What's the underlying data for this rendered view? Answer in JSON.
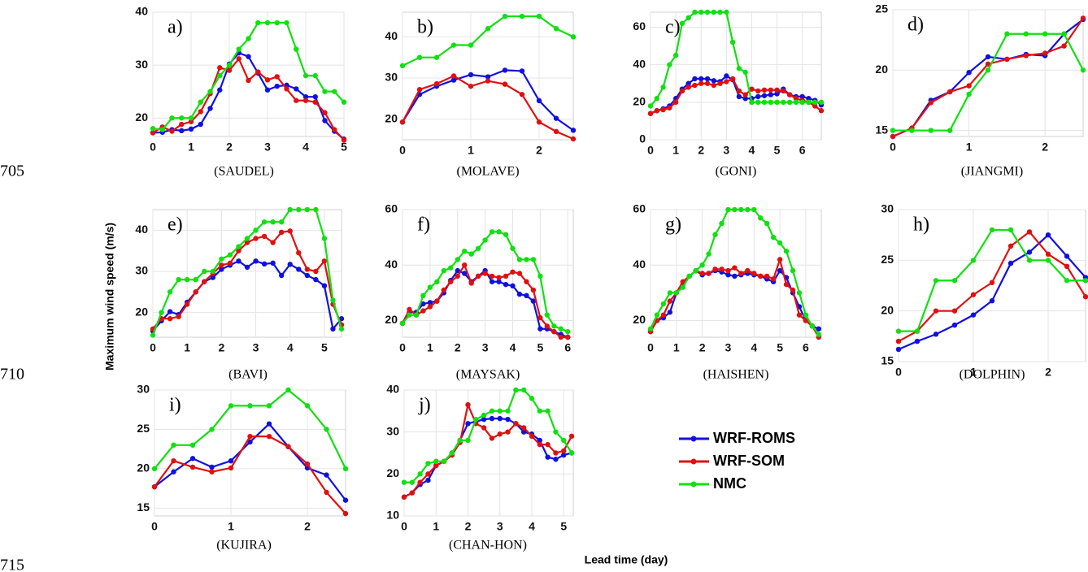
{
  "line_numbers": [
    "705",
    "710",
    "715"
  ],
  "y_label": "Maximum wind speed (m/s)",
  "x_label": "Lead time (day)",
  "chart_data": [
    {
      "type": "line",
      "title": "a)",
      "caption": "(SAUDEL)",
      "xlim": [
        0,
        5
      ],
      "ylim": [
        16.5,
        40
      ],
      "xticks": [
        0,
        1,
        2,
        3,
        4,
        5
      ],
      "yticks": [
        20,
        30,
        40
      ],
      "grid": true,
      "x": [
        0,
        0.25,
        0.5,
        0.75,
        1,
        1.25,
        1.5,
        1.75,
        2,
        2.25,
        2.5,
        2.75,
        3,
        3.25,
        3.5,
        3.75,
        4,
        4.25,
        4.5,
        4.75,
        5
      ],
      "series": [
        {
          "name": "WRF-ROMS",
          "color": "#1010e0",
          "values": [
            17.2,
            17.3,
            17.8,
            17.6,
            17.9,
            18.8,
            21.8,
            25.3,
            30.2,
            32.3,
            31.6,
            28.5,
            25.3,
            26,
            26.2,
            25.5,
            24,
            24,
            19.5,
            17.5,
            16
          ]
        },
        {
          "name": "WRF-SOM",
          "color": "#e01010",
          "values": [
            17.2,
            18.3,
            17.5,
            18.8,
            19.3,
            21.2,
            24.6,
            29.5,
            29,
            31.2,
            27.1,
            28.7,
            27.2,
            27.8,
            25.5,
            23.3,
            23.3,
            23,
            21,
            17.8,
            15.8
          ]
        },
        {
          "name": "NMC",
          "color": "#10e010",
          "values": [
            18,
            17.8,
            20,
            20,
            20,
            23,
            25,
            28,
            30,
            33,
            35,
            38,
            38,
            38,
            38,
            33,
            28,
            28,
            25,
            25,
            23
          ]
        }
      ]
    },
    {
      "type": "line",
      "title": "b)",
      "caption": "(MOLAVE)",
      "xlim": [
        0,
        2.5
      ],
      "ylim": [
        15,
        46
      ],
      "xticks": [
        0,
        1,
        2
      ],
      "yticks": [
        20,
        30,
        40
      ],
      "grid": true,
      "x": [
        0,
        0.25,
        0.5,
        0.75,
        1,
        1.25,
        1.5,
        1.75,
        2,
        2.25,
        2.5
      ],
      "series": [
        {
          "name": "WRF-ROMS",
          "color": "#1010e0",
          "values": [
            19.3,
            26,
            28,
            29.5,
            30.8,
            30.3,
            31.9,
            31.7,
            24.5,
            20.2,
            17.3
          ]
        },
        {
          "name": "WRF-SOM",
          "color": "#e01010",
          "values": [
            19.3,
            27.2,
            28.6,
            30.5,
            28,
            29.3,
            28.5,
            26,
            19.3,
            17,
            15.2
          ]
        },
        {
          "name": "NMC",
          "color": "#10e010",
          "values": [
            33,
            35,
            35,
            38,
            38,
            42,
            45,
            45,
            45,
            42,
            40
          ]
        }
      ]
    },
    {
      "type": "line",
      "title": "c)",
      "caption": "(GONI)",
      "xlim": [
        0,
        6.75
      ],
      "ylim": [
        0,
        68
      ],
      "xticks": [
        0,
        1,
        2,
        3,
        4,
        5,
        6
      ],
      "yticks": [
        0,
        20,
        40,
        60
      ],
      "grid": true,
      "x": [
        0,
        0.25,
        0.5,
        0.75,
        1,
        1.25,
        1.5,
        1.75,
        2,
        2.25,
        2.5,
        2.75,
        3,
        3.25,
        3.5,
        3.75,
        4,
        4.25,
        4.5,
        4.75,
        5,
        5.25,
        5.5,
        5.75,
        6,
        6.25,
        6.5,
        6.75
      ],
      "series": [
        {
          "name": "WRF-ROMS",
          "color": "#1010e0",
          "values": [
            14,
            15.5,
            16.5,
            18,
            22,
            27,
            30,
            32.5,
            32.5,
            32.5,
            31.5,
            31,
            34,
            32,
            23,
            22,
            22,
            23,
            23.5,
            24,
            24.5,
            27,
            24,
            23,
            23,
            22,
            21,
            18.5
          ]
        },
        {
          "name": "WRF-SOM",
          "color": "#e01010",
          "values": [
            14,
            15.5,
            16,
            17,
            20,
            26,
            28,
            29,
            30,
            30,
            29,
            30,
            31,
            32.5,
            26,
            24,
            27,
            26,
            26.5,
            26.5,
            26.5,
            26,
            24,
            22,
            21,
            20,
            18,
            15.5
          ]
        },
        {
          "name": "NMC",
          "color": "#10e010",
          "values": [
            18,
            22,
            28,
            40,
            45,
            62,
            65,
            68,
            68,
            68,
            68,
            68,
            68,
            52,
            38,
            36,
            20,
            20,
            20,
            20,
            20,
            20,
            20,
            20,
            20,
            20,
            20,
            20
          ]
        }
      ]
    },
    {
      "type": "line",
      "title": "d)",
      "caption": "(JIANGMI)",
      "xlim": [
        0,
        2.5
      ],
      "ylim": [
        14.5,
        25
      ],
      "xticks": [
        0,
        1,
        2
      ],
      "yticks": [
        15,
        20,
        25
      ],
      "grid": true,
      "x": [
        0,
        0.25,
        0.5,
        0.75,
        1,
        1.25,
        1.5,
        1.75,
        2,
        2.25,
        2.5
      ],
      "series": [
        {
          "name": "WRF-ROMS",
          "color": "#1010e0",
          "values": [
            14.5,
            15.2,
            17.5,
            18.2,
            19.8,
            21.1,
            20.9,
            21.3,
            21.2,
            23,
            24.2
          ]
        },
        {
          "name": "WRF-SOM",
          "color": "#e01010",
          "values": [
            14.5,
            15.2,
            17.3,
            18.2,
            18.7,
            20.5,
            20.9,
            21.2,
            21.4,
            22,
            24.3
          ]
        },
        {
          "name": "NMC",
          "color": "#10e010",
          "values": [
            15,
            15,
            15,
            15,
            18,
            20,
            23,
            23,
            23,
            23,
            20
          ]
        }
      ]
    },
    {
      "type": "line",
      "title": "e)",
      "caption": "(BAVI)",
      "xlim": [
        0,
        5.5
      ],
      "ylim": [
        14,
        45
      ],
      "xticks": [
        0,
        1,
        2,
        3,
        4,
        5
      ],
      "yticks": [
        20,
        30,
        40
      ],
      "grid": true,
      "x": [
        0,
        0.25,
        0.5,
        0.75,
        1,
        1.25,
        1.5,
        1.75,
        2,
        2.25,
        2.5,
        2.75,
        3,
        3.25,
        3.5,
        3.75,
        4,
        4.25,
        4.5,
        4.75,
        5,
        5.25,
        5.5
      ],
      "series": [
        {
          "name": "WRF-ROMS",
          "color": "#1010e0",
          "values": [
            15.5,
            18,
            20.2,
            19.5,
            22.5,
            25,
            27.5,
            28.5,
            30.5,
            31.5,
            32.5,
            31,
            32.5,
            31.8,
            32,
            29,
            31.7,
            30.5,
            29,
            28,
            26.5,
            16,
            18.5
          ]
        },
        {
          "name": "WRF-SOM",
          "color": "#e01010",
          "values": [
            16,
            18.5,
            18.5,
            19,
            22,
            25,
            27.5,
            29.5,
            31.5,
            32,
            35,
            37,
            38,
            38.5,
            37,
            39.5,
            39.8,
            34.5,
            30.5,
            30,
            32.5,
            22,
            17
          ]
        },
        {
          "name": "NMC",
          "color": "#10e010",
          "values": [
            14.5,
            20,
            25,
            28,
            28,
            28,
            30,
            30,
            33,
            34,
            36,
            38,
            40,
            42,
            42,
            42,
            45,
            45,
            45,
            45,
            38,
            23,
            16
          ]
        }
      ]
    },
    {
      "type": "line",
      "title": "f)",
      "caption": "(MAYSAK)",
      "xlim": [
        0,
        6.2
      ],
      "ylim": [
        14,
        60
      ],
      "xticks": [
        0,
        1,
        2,
        3,
        4,
        5,
        6
      ],
      "yticks": [
        20,
        40,
        60
      ],
      "grid": true,
      "x": [
        0,
        0.25,
        0.5,
        0.75,
        1,
        1.25,
        1.5,
        1.75,
        2,
        2.25,
        2.5,
        2.75,
        3,
        3.25,
        3.5,
        3.75,
        4,
        4.25,
        4.5,
        4.75,
        5,
        5.25,
        5.5,
        5.75,
        6
      ],
      "series": [
        {
          "name": "WRF-ROMS",
          "color": "#1010e0",
          "values": [
            19,
            23,
            23,
            26,
            26.5,
            27,
            30,
            34.5,
            38,
            37,
            34,
            36,
            38,
            34,
            34,
            33,
            32.5,
            29.5,
            29,
            27,
            17,
            17,
            16,
            15,
            14
          ]
        },
        {
          "name": "WRF-SOM",
          "color": "#e01010",
          "values": [
            19,
            24,
            22,
            23.5,
            25,
            27,
            31,
            34,
            36,
            40,
            33.5,
            36,
            37,
            36,
            35.5,
            36,
            37.5,
            37,
            34,
            31,
            21,
            18,
            16,
            14,
            14
          ]
        },
        {
          "name": "NMC",
          "color": "#10e010",
          "values": [
            19,
            22,
            22,
            29,
            32,
            34,
            38,
            39,
            42,
            45,
            44,
            46,
            49,
            52,
            52,
            51,
            46,
            42,
            42,
            42,
            36,
            22,
            18,
            17,
            16
          ]
        }
      ]
    },
    {
      "type": "line",
      "title": "g)",
      "caption": "(HAISHEN)",
      "xlim": [
        0,
        6.6
      ],
      "ylim": [
        14,
        60
      ],
      "xticks": [
        0,
        1,
        2,
        3,
        4,
        5,
        6
      ],
      "yticks": [
        20,
        40,
        60
      ],
      "grid": true,
      "x": [
        0,
        0.25,
        0.5,
        0.75,
        1,
        1.25,
        1.5,
        1.75,
        2,
        2.25,
        2.5,
        2.75,
        3,
        3.25,
        3.5,
        3.75,
        4,
        4.25,
        4.5,
        4.75,
        5,
        5.25,
        5.5,
        5.75,
        6,
        6.25,
        6.5
      ],
      "series": [
        {
          "name": "WRF-ROMS",
          "color": "#1010e0",
          "values": [
            16,
            20,
            21,
            23,
            30,
            33,
            36,
            38,
            36.5,
            37,
            38,
            37.5,
            36.5,
            36,
            36.5,
            37,
            36.5,
            36,
            35,
            34,
            38,
            35.5,
            30,
            25,
            20,
            18,
            17
          ]
        },
        {
          "name": "WRF-SOM",
          "color": "#e01010",
          "values": [
            16,
            20,
            22,
            27,
            30,
            34,
            36,
            38,
            37,
            37,
            38.5,
            38.5,
            38,
            39,
            37,
            38,
            37,
            36,
            36,
            35,
            42,
            33,
            31,
            22,
            20,
            18,
            14
          ]
        },
        {
          "name": "NMC",
          "color": "#10e010",
          "values": [
            17,
            22,
            26,
            30,
            30,
            32,
            36,
            38,
            40,
            44,
            51,
            55,
            60,
            60,
            60,
            60,
            60,
            57,
            55,
            50,
            48,
            45,
            38,
            30,
            22,
            18,
            15
          ]
        }
      ]
    },
    {
      "type": "line",
      "title": "h)",
      "caption": "(DOLPHIN)",
      "xlim": [
        0,
        2.5
      ],
      "ylim": [
        15,
        30
      ],
      "xticks": [
        0,
        1,
        2
      ],
      "yticks": [
        15,
        20,
        25,
        30
      ],
      "grid": true,
      "x": [
        0,
        0.25,
        0.5,
        0.75,
        1,
        1.25,
        1.5,
        1.75,
        2,
        2.25,
        2.5
      ],
      "series": [
        {
          "name": "WRF-ROMS",
          "color": "#1010e0",
          "values": [
            16.2,
            17,
            17.7,
            18.6,
            19.6,
            21,
            24.7,
            25.8,
            27.5,
            25.4,
            23.3
          ]
        },
        {
          "name": "WRF-SOM",
          "color": "#e01010",
          "values": [
            17,
            18,
            20,
            20,
            21.6,
            22.8,
            26.4,
            27.8,
            25.6,
            24.4,
            21.4
          ]
        },
        {
          "name": "NMC",
          "color": "#10e010",
          "values": [
            18,
            18,
            23,
            23,
            25,
            28,
            28,
            25,
            25,
            23,
            23
          ]
        }
      ]
    },
    {
      "type": "line",
      "title": "i)",
      "caption": "(KUJIRA)",
      "xlim": [
        0,
        2.5
      ],
      "ylim": [
        14,
        30
      ],
      "xticks": [
        0,
        1,
        2
      ],
      "yticks": [
        15,
        20,
        25,
        30
      ],
      "grid": true,
      "x": [
        0,
        0.25,
        0.5,
        0.75,
        1,
        1.25,
        1.5,
        1.75,
        2,
        2.25,
        2.5
      ],
      "series": [
        {
          "name": "WRF-ROMS",
          "color": "#1010e0",
          "values": [
            17.7,
            19.6,
            21.3,
            20.2,
            21,
            23.4,
            25.7,
            22.8,
            20.1,
            19.2,
            16
          ]
        },
        {
          "name": "WRF-SOM",
          "color": "#e01010",
          "values": [
            17.7,
            21,
            20.2,
            19.6,
            20.1,
            24.1,
            24.1,
            22.8,
            20.6,
            17,
            14.3
          ]
        },
        {
          "name": "NMC",
          "color": "#10e010",
          "values": [
            20,
            23,
            23,
            25,
            28,
            28,
            28,
            30,
            28,
            25,
            20
          ]
        }
      ]
    },
    {
      "type": "line",
      "title": "j)",
      "caption": "(CHAN-HON)",
      "xlim": [
        0,
        5.3
      ],
      "ylim": [
        10,
        40
      ],
      "xticks": [
        0,
        1,
        2,
        3,
        4,
        5
      ],
      "yticks": [
        10,
        20,
        30,
        40
      ],
      "grid": true,
      "x": [
        0,
        0.25,
        0.5,
        0.75,
        1,
        1.25,
        1.5,
        1.75,
        2,
        2.25,
        2.5,
        2.75,
        3,
        3.25,
        3.5,
        3.75,
        4,
        4.25,
        4.5,
        4.75,
        5,
        5.25
      ],
      "series": [
        {
          "name": "WRF-ROMS",
          "color": "#1010e0",
          "values": [
            14.5,
            15.5,
            17.5,
            18.5,
            22,
            23,
            25,
            28,
            32,
            32.5,
            33,
            33.2,
            33.2,
            33,
            32,
            30,
            29.5,
            28,
            24,
            23.5,
            24.5,
            25
          ]
        },
        {
          "name": "WRF-SOM",
          "color": "#e01010",
          "values": [
            14.5,
            15.5,
            18,
            20,
            22,
            23,
            24.5,
            27.5,
            36.5,
            32,
            31,
            28.5,
            29.5,
            30,
            32,
            31,
            29,
            27,
            27,
            25,
            25.5,
            29
          ]
        },
        {
          "name": "NMC",
          "color": "#10e010",
          "values": [
            18,
            18,
            20,
            22.5,
            23,
            23,
            25,
            28,
            28,
            33,
            34,
            35,
            35,
            35,
            40,
            40,
            38,
            35,
            35,
            30,
            28,
            25
          ]
        }
      ]
    }
  ]
}
